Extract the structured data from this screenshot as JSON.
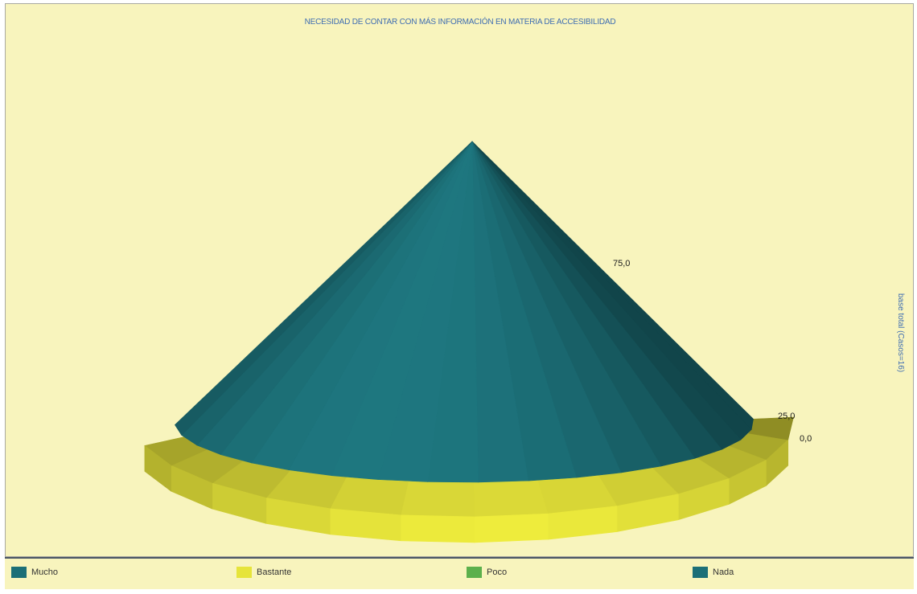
{
  "chart_data": {
    "type": "pie",
    "style": "3d-cone",
    "title": "NECESIDAD DE CONTAR CON MÁS INFORMACIÓN EN MATERIA DE ACCESIBILIDAD",
    "ylabel": "base total (Casos=16)",
    "ytick_labels": [
      "0,0",
      "25,0",
      "75,0"
    ],
    "legend_placement": "bottom",
    "categories": [
      "Mucho",
      "Bastante",
      "Poco",
      "Nada"
    ],
    "values": [
      87,
      13,
      0,
      0
    ],
    "colors": [
      "#1c6f77",
      "#e6e43a",
      "#5cb04c",
      "#1c6f77"
    ]
  }
}
